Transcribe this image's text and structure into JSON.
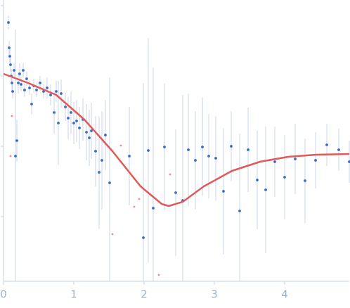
{
  "chart_data": {
    "type": "scatter",
    "xlim": [
      0,
      4.92
    ],
    "xticks": [
      0,
      1,
      2,
      3,
      4
    ],
    "ylim": [
      0.08,
      4.08
    ],
    "yticks": [
      1,
      2,
      3,
      4
    ],
    "series": [
      {
        "color": "#3a6cc4",
        "error_color": "#c9d6ea",
        "x": [
          0.07,
          0.08,
          0.09,
          0.1,
          0.11,
          0.12,
          0.13,
          0.15,
          0.17,
          0.19,
          0.21,
          0.23,
          0.25,
          0.28,
          0.3,
          0.33,
          0.37,
          0.4,
          0.43,
          0.47,
          0.52,
          0.57,
          0.62,
          0.67,
          0.72,
          0.75,
          0.78,
          0.82,
          0.88,
          0.92,
          0.96,
          1.0,
          1.04,
          1.08,
          1.13,
          1.18,
          1.22,
          1.25,
          1.31,
          1.36,
          1.4,
          1.45,
          1.51,
          1.79,
          1.99,
          2.06,
          2.13,
          2.29,
          2.45,
          2.55,
          2.63,
          2.73,
          2.83,
          2.92,
          3.02,
          3.13,
          3.24,
          3.36,
          3.48,
          3.61,
          3.73,
          3.86,
          4.0,
          4.15,
          4.29,
          4.44,
          4.6,
          4.77,
          4.92
        ],
        "values": [
          3.76,
          3.4,
          3.28,
          3.16,
          3.0,
          2.9,
          2.78,
          3.08,
          1.86,
          2.08,
          2.9,
          3.03,
          2.88,
          3.08,
          2.8,
          2.96,
          2.83,
          2.6,
          2.86,
          2.8,
          2.9,
          2.78,
          2.83,
          2.73,
          2.48,
          2.78,
          2.33,
          2.75,
          2.56,
          2.4,
          2.48,
          2.33,
          2.36,
          2.26,
          2.38,
          2.2,
          2.12,
          2.22,
          1.93,
          1.63,
          1.8,
          2.16,
          1.48,
          1.86,
          0.7,
          1.94,
          1.12,
          1.99,
          1.34,
          1.23,
          1.95,
          1.8,
          1.99,
          1.86,
          1.83,
          1.36,
          2.0,
          1.08,
          1.95,
          1.52,
          1.38,
          1.78,
          1.56,
          1.82,
          1.51,
          1.8,
          2.02,
          1.95,
          1.78
        ],
        "errors": [
          0.1,
          0.1,
          0.1,
          0.1,
          0.1,
          0.1,
          0.1,
          0.1,
          1.8,
          0.3,
          0.15,
          0.15,
          0.1,
          0.1,
          0.1,
          0.1,
          0.1,
          0.15,
          0.1,
          0.1,
          0.1,
          0.1,
          0.15,
          0.15,
          0.3,
          0.15,
          0.6,
          0.2,
          0.2,
          0.3,
          0.3,
          0.3,
          0.3,
          0.3,
          0.3,
          0.4,
          0.4,
          0.4,
          0.5,
          0.8,
          0.7,
          0.5,
          1.5,
          0.7,
          2.2,
          1.6,
          2.0,
          0.9,
          0.9,
          1.5,
          0.8,
          0.7,
          0.7,
          0.6,
          0.6,
          0.9,
          0.5,
          1.1,
          0.6,
          0.7,
          0.9,
          0.5,
          0.6,
          0.5,
          0.6,
          0.4,
          0.3,
          0.3,
          0.3
        ]
      },
      {
        "color": "#f28a8a",
        "x": [
          0.1,
          0.12,
          1.55,
          1.67,
          1.86,
          1.93,
          2.21,
          2.37
        ],
        "values": [
          1.86,
          2.43,
          0.75,
          2.01,
          1.14,
          1.25,
          0.17,
          1.6
        ]
      }
    ],
    "fit": {
      "color": "#e05a5a",
      "x": [
        0,
        0.35,
        0.75,
        1.15,
        1.55,
        1.95,
        2.25,
        2.35,
        2.55,
        2.85,
        3.25,
        3.65,
        4.05,
        4.45,
        4.92
      ],
      "values": [
        3.03,
        2.9,
        2.73,
        2.38,
        1.93,
        1.43,
        1.18,
        1.15,
        1.21,
        1.43,
        1.65,
        1.78,
        1.85,
        1.88,
        1.89
      ]
    }
  }
}
